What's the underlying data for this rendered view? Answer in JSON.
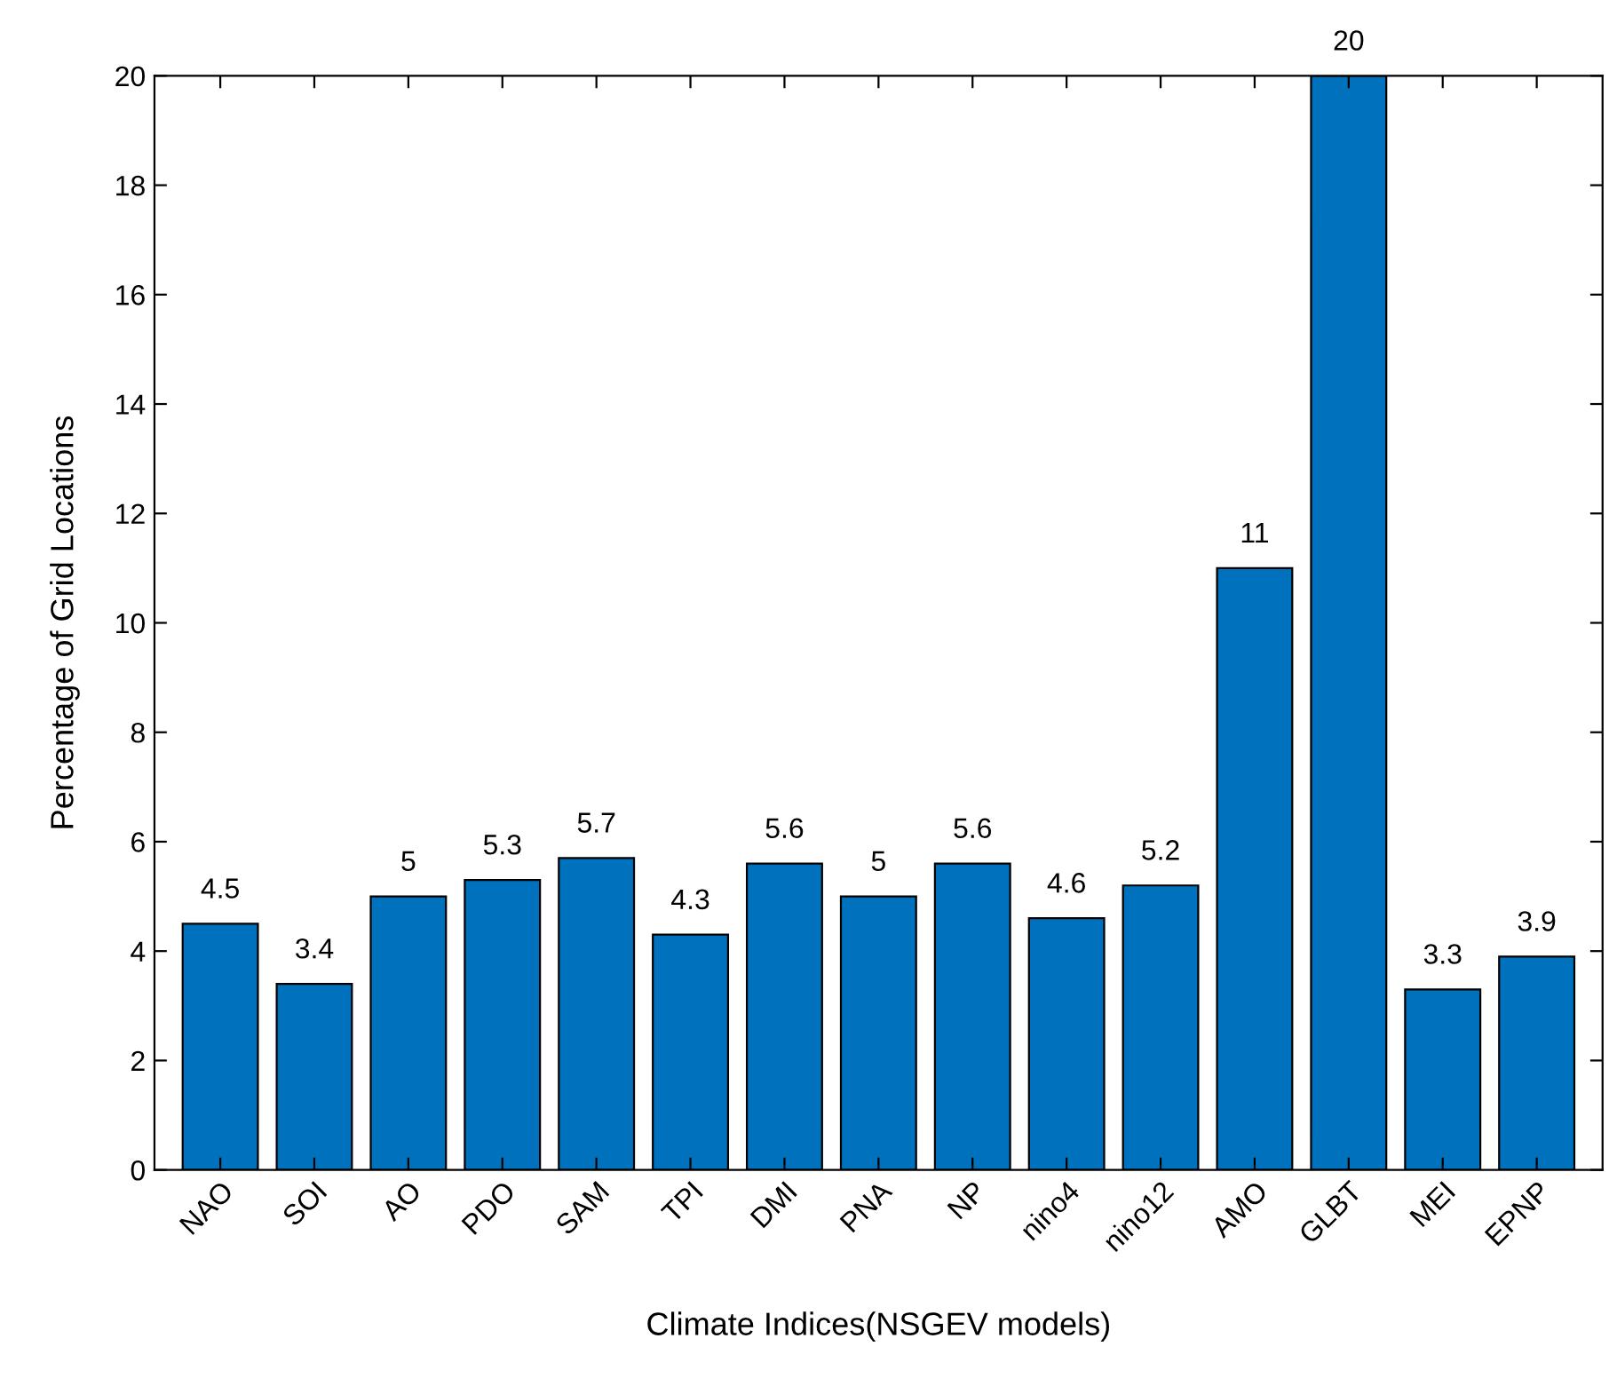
{
  "chart_data": {
    "type": "bar",
    "xlabel": "Climate Indices(NSGEV models)",
    "ylabel": "Percentage of Grid Locations",
    "categories": [
      "NAO",
      "SOI",
      "AO",
      "PDO",
      "SAM",
      "TPI",
      "DMI",
      "PNA",
      "NP",
      "nino4",
      "nino12",
      "AMO",
      "GLBT",
      "MEI",
      "EPNP"
    ],
    "values": [
      4.5,
      3.4,
      5,
      5.3,
      5.7,
      4.3,
      5.6,
      5,
      5.6,
      4.6,
      5.2,
      11,
      20,
      3.3,
      3.9
    ],
    "color": "#0072bd",
    "ylim": [
      0,
      20
    ],
    "yticks": [
      0,
      2,
      4,
      6,
      8,
      10,
      12,
      14,
      16,
      18,
      20
    ],
    "data_labels": true,
    "grid": false
  }
}
